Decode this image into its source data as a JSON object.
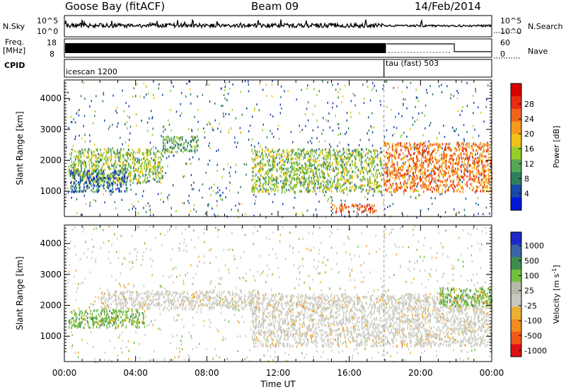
{
  "header": {
    "station": "Goose Bay (fitACF)",
    "beam": "Beam 09",
    "date": "14/Feb/2014"
  },
  "panels": {
    "nsky_label": "N.Sky",
    "nsky_ticks": [
      "10^5",
      "10^0"
    ],
    "nsearch_ticks": [
      "10^5",
      "10^0"
    ],
    "nsearch_label": "N.Search",
    "freq_label": "Freq.",
    "freq_unit": "[MHz]",
    "freq_ticks": [
      "18",
      "8"
    ],
    "nave_ticks": [
      "60",
      "0"
    ],
    "nave_label": "Nave",
    "cpid_label": "CPID",
    "cpid_segments": [
      "icescan 1200",
      "tau (fast) 503"
    ]
  },
  "chart_data": [
    {
      "type": "heatmap",
      "name": "power",
      "xlabel": "Time UT",
      "ylabel": "Slant Range [km]",
      "x_ticks": [
        "00:00",
        "04:00",
        "08:00",
        "12:00",
        "16:00",
        "20:00",
        "00:00"
      ],
      "xlim_hours": [
        0,
        24
      ],
      "ylim": [
        180,
        4600
      ],
      "y_ticks": [
        1000,
        2000,
        3000,
        4000
      ],
      "colorbar": {
        "label": "Power [dB]",
        "ticks": [
          "28",
          "24",
          "20",
          "16",
          "12",
          "8",
          "4"
        ],
        "colors": [
          "#0018d8",
          "#1848a8",
          "#2e7f5e",
          "#55a85a",
          "#98cc2a",
          "#f2c21a",
          "#f59a1c",
          "#f0641a",
          "#e82a14",
          "#d80000"
        ]
      },
      "features": [
        {
          "t": [
            0.2,
            5.5
          ],
          "range": [
            1300,
            2400
          ],
          "value": 14
        },
        {
          "t": [
            0.3,
            3.5
          ],
          "range": [
            1000,
            1700
          ],
          "value": 8
        },
        {
          "t": [
            5.5,
            7.5
          ],
          "range": [
            2300,
            2800
          ],
          "value": 12
        },
        {
          "t": [
            10.5,
            17.8
          ],
          "range": [
            1000,
            2400
          ],
          "value": 14
        },
        {
          "t": [
            15.0,
            17.5
          ],
          "range": [
            350,
            600
          ],
          "value": 24
        },
        {
          "t": [
            17.9,
            24.0
          ],
          "range": [
            1000,
            2600
          ],
          "value": 22
        }
      ]
    },
    {
      "type": "heatmap",
      "name": "velocity",
      "xlabel": "Time UT",
      "ylabel": "Slant Range [km]",
      "x_ticks": [
        "00:00",
        "04:00",
        "08:00",
        "12:00",
        "16:00",
        "20:00",
        "00:00"
      ],
      "xlim_hours": [
        0,
        24
      ],
      "ylim": [
        180,
        4600
      ],
      "y_ticks": [
        1000,
        2000,
        3000,
        4000
      ],
      "colorbar": {
        "label": "Velocity [m s",
        "label_superscript": "-1",
        "label_close": "]",
        "ticks": [
          "1000",
          "500",
          "100",
          "25",
          "-25",
          "-100",
          "-500",
          "-1000"
        ],
        "colors": [
          "#1c28c8",
          "#3c64a8",
          "#3c8c50",
          "#70c040",
          "#b8b8a8",
          "#c8c8c0",
          "#ecb030",
          "#f08c20",
          "#f05818",
          "#e01010"
        ]
      },
      "features": [
        {
          "t": [
            0.2,
            4.5
          ],
          "range": [
            1300,
            1900
          ],
          "value": 100
        },
        {
          "t": [
            2.0,
            11.0
          ],
          "range": [
            1900,
            2500
          ],
          "value": 0
        },
        {
          "t": [
            10.5,
            24.0
          ],
          "range": [
            700,
            2400
          ],
          "value": 0
        },
        {
          "t": [
            21.0,
            24.0
          ],
          "range": [
            2000,
            2600
          ],
          "value": 100
        }
      ]
    }
  ]
}
